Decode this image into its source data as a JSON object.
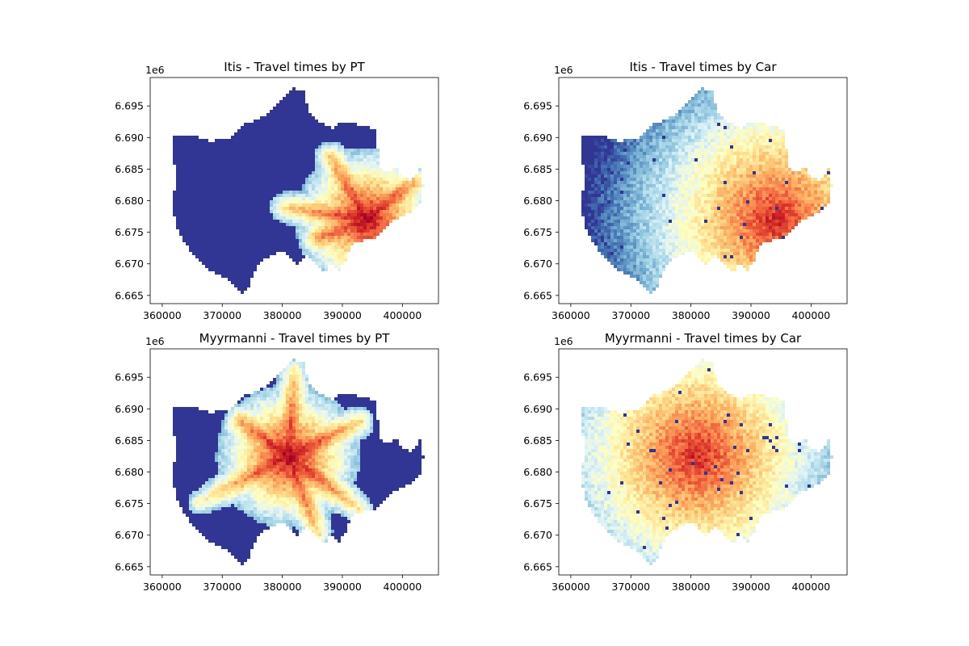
{
  "chart_data": [
    {
      "type": "heatmap",
      "title": "Itis - Travel times by PT",
      "xlabel": "",
      "ylabel": "",
      "x_offset_label": "",
      "y_offset_label": "1e6",
      "xlim": [
        358000,
        406000
      ],
      "ylim": [
        6.6637,
        6.6995
      ],
      "xticks": [
        360000,
        370000,
        380000,
        390000,
        400000
      ],
      "xtick_labels": [
        "360000",
        "370000",
        "380000",
        "390000",
        "400000"
      ],
      "yticks": [
        6.665,
        6.67,
        6.675,
        6.68,
        6.685,
        6.69,
        6.695
      ],
      "ytick_labels": [
        "6.665",
        "6.670",
        "6.675",
        "6.680",
        "6.685",
        "6.690",
        "6.695"
      ],
      "colormap": "RdYlBu",
      "hotspot": [
        394000,
        6.677
      ],
      "hotspot_reach": 0.55,
      "mode": "PT",
      "corridors": [
        [
          [
            394000,
            6.677
          ],
          [
            402000,
            6.683
          ]
        ],
        [
          [
            394000,
            6.677
          ],
          [
            380000,
            6.679
          ]
        ],
        [
          [
            394000,
            6.677
          ],
          [
            386000,
            6.674
          ]
        ],
        [
          [
            394000,
            6.677
          ],
          [
            388000,
            6.687
          ]
        ]
      ]
    },
    {
      "type": "heatmap",
      "title": "Itis - Travel times by Car",
      "xlabel": "",
      "ylabel": "",
      "x_offset_label": "",
      "y_offset_label": "1e6",
      "xlim": [
        358000,
        406000
      ],
      "ylim": [
        6.6637,
        6.6995
      ],
      "xticks": [
        360000,
        370000,
        380000,
        390000,
        400000
      ],
      "xtick_labels": [
        "360000",
        "370000",
        "380000",
        "390000",
        "400000"
      ],
      "yticks": [
        6.665,
        6.67,
        6.675,
        6.68,
        6.685,
        6.69,
        6.695
      ],
      "ytick_labels": [
        "6.665",
        "6.670",
        "6.675",
        "6.680",
        "6.685",
        "6.690",
        "6.695"
      ],
      "colormap": "RdYlBu",
      "hotspot": [
        394000,
        6.677
      ],
      "hotspot_reach": 1.05,
      "mode": "Car",
      "corridors": []
    },
    {
      "type": "heatmap",
      "title": "Myyrmanni - Travel times by PT",
      "xlabel": "",
      "ylabel": "",
      "x_offset_label": "",
      "y_offset_label": "1e6",
      "xlim": [
        358000,
        406000
      ],
      "ylim": [
        6.6637,
        6.6995
      ],
      "xticks": [
        360000,
        370000,
        380000,
        390000,
        400000
      ],
      "xtick_labels": [
        "360000",
        "370000",
        "380000",
        "390000",
        "400000"
      ],
      "yticks": [
        6.665,
        6.67,
        6.675,
        6.68,
        6.685,
        6.69,
        6.695
      ],
      "ytick_labels": [
        "6.665",
        "6.670",
        "6.675",
        "6.680",
        "6.685",
        "6.690",
        "6.695"
      ],
      "colormap": "RdYlBu",
      "hotspot": [
        381000,
        6.6825
      ],
      "hotspot_reach": 0.55,
      "mode": "PT",
      "corridors": [
        [
          [
            381000,
            6.6825
          ],
          [
            382000,
            6.696
          ]
        ],
        [
          [
            381000,
            6.6825
          ],
          [
            366000,
            6.675
          ]
        ],
        [
          [
            381000,
            6.6825
          ],
          [
            393000,
            6.674
          ]
        ],
        [
          [
            381000,
            6.6825
          ],
          [
            393000,
            6.688
          ]
        ],
        [
          [
            381000,
            6.6825
          ],
          [
            373000,
            6.688
          ]
        ],
        [
          [
            381000,
            6.6825
          ],
          [
            386000,
            6.67
          ]
        ]
      ]
    },
    {
      "type": "heatmap",
      "title": "Myyrmanni - Travel times by Car",
      "xlabel": "",
      "ylabel": "",
      "x_offset_label": "",
      "y_offset_label": "1e6",
      "xlim": [
        358000,
        406000
      ],
      "ylim": [
        6.6637,
        6.6995
      ],
      "xticks": [
        360000,
        370000,
        380000,
        390000,
        400000
      ],
      "xtick_labels": [
        "360000",
        "370000",
        "380000",
        "390000",
        "400000"
      ],
      "yticks": [
        6.665,
        6.67,
        6.675,
        6.68,
        6.685,
        6.69,
        6.695
      ],
      "ytick_labels": [
        "6.665",
        "6.670",
        "6.675",
        "6.680",
        "6.685",
        "6.690",
        "6.695"
      ],
      "colormap": "RdYlBu",
      "hotspot": [
        381000,
        6.6825
      ],
      "hotspot_reach": 1.05,
      "mode": "Car",
      "corridors": []
    }
  ],
  "region_outline": [
    [
      362000,
      6.6905
    ],
    [
      365000,
      6.6903
    ],
    [
      368000,
      6.6894
    ],
    [
      371000,
      6.6899
    ],
    [
      374000,
      6.6922
    ],
    [
      377000,
      6.6933
    ],
    [
      379000,
      6.6952
    ],
    [
      380500,
      6.6965
    ],
    [
      382000,
      6.6978
    ],
    [
      383500,
      6.6974
    ],
    [
      384500,
      6.6938
    ],
    [
      386500,
      6.6923
    ],
    [
      388500,
      6.6915
    ],
    [
      390000,
      6.6925
    ],
    [
      392000,
      6.6922
    ],
    [
      394000,
      6.6918
    ],
    [
      395500,
      6.691
    ],
    [
      396000,
      6.688
    ],
    [
      396500,
      6.6848
    ],
    [
      398000,
      6.6844
    ],
    [
      399000,
      6.6855
    ],
    [
      400000,
      6.6838
    ],
    [
      401500,
      6.683
    ],
    [
      403000,
      6.6852
    ],
    [
      403500,
      6.6822
    ],
    [
      403000,
      6.6795
    ],
    [
      401500,
      6.678
    ],
    [
      399500,
      6.6775
    ],
    [
      397500,
      6.676
    ],
    [
      395500,
      6.6742
    ],
    [
      393500,
      6.6736
    ],
    [
      391500,
      6.673
    ],
    [
      390500,
      6.6705
    ],
    [
      389500,
      6.669
    ],
    [
      388000,
      6.67
    ],
    [
      387000,
      6.6685
    ],
    [
      385500,
      6.6703
    ],
    [
      384000,
      6.6712
    ],
    [
      382500,
      6.67
    ],
    [
      381000,
      6.6715
    ],
    [
      379500,
      6.672
    ],
    [
      377500,
      6.671
    ],
    [
      376000,
      6.6698
    ],
    [
      375000,
      6.668
    ],
    [
      374200,
      6.666
    ],
    [
      373500,
      6.6652
    ],
    [
      372500,
      6.666
    ],
    [
      371500,
      6.667
    ],
    [
      370000,
      6.668
    ],
    [
      368000,
      6.6688
    ],
    [
      366500,
      6.67
    ],
    [
      365000,
      6.6715
    ],
    [
      363500,
      6.6738
    ],
    [
      362500,
      6.6755
    ],
    [
      362000,
      6.6775
    ],
    [
      361800,
      6.68
    ],
    [
      362200,
      6.683
    ],
    [
      362000,
      6.6865
    ]
  ]
}
